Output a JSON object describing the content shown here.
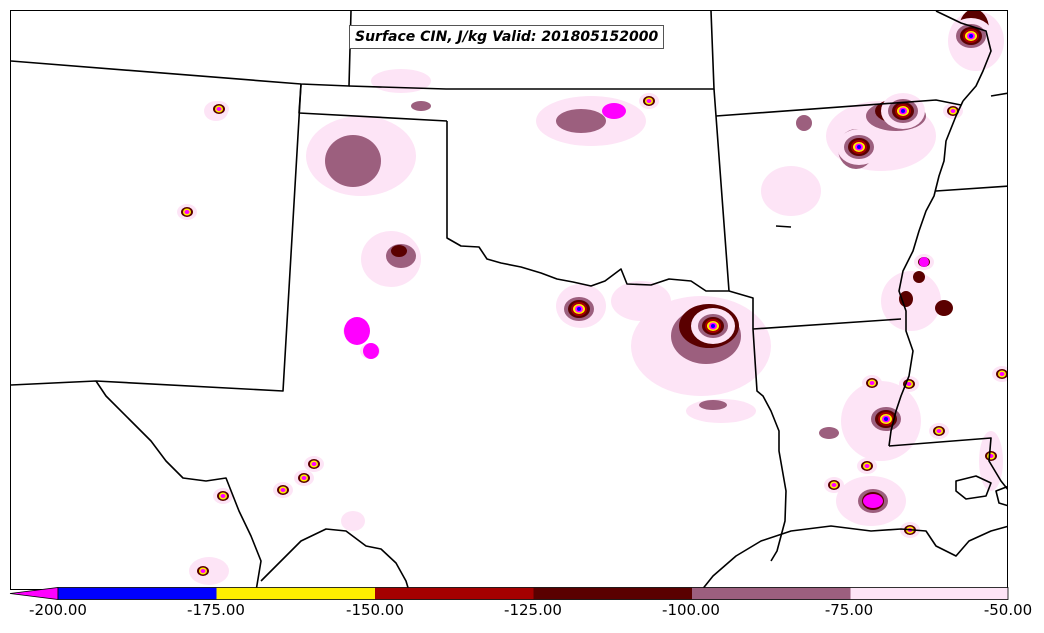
{
  "title": "Surface CIN, J/kg Valid: 201805152000",
  "colorbar": {
    "ticks": [
      "-200.00",
      "-175.00",
      "-150.00",
      "-125.00",
      "-100.00",
      "-75.00",
      "-50.00"
    ],
    "bins": [
      {
        "range": [
          -200,
          -175
        ],
        "color": "#0000ff"
      },
      {
        "range": [
          -175,
          -150
        ],
        "color": "#ffee00"
      },
      {
        "range": [
          -150,
          -125
        ],
        "color": "#a50000"
      },
      {
        "range": [
          -125,
          -100
        ],
        "color": "#5a0000"
      },
      {
        "range": [
          -100,
          -75
        ],
        "color": "#9c5f7e"
      },
      {
        "range": [
          -75,
          -50
        ],
        "color": "#fde4f6"
      }
    ],
    "under_color": "#ff00ff"
  }
}
